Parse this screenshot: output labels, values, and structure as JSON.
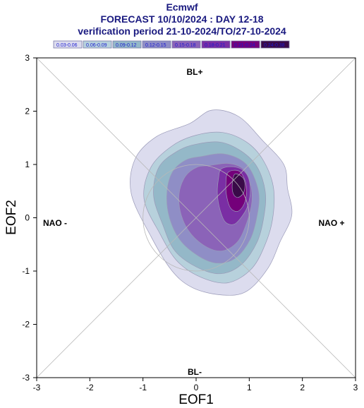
{
  "chart_data": {
    "type": "contour",
    "title_lines": [
      "Ecmwf",
      "FORECAST 10/10/2024 : DAY 12-18",
      "verification period 21-10-2024/TO/27-10-2024"
    ],
    "xlabel": "EOF1",
    "ylabel": "EOF2",
    "xlim": [
      -3,
      3
    ],
    "ylim": [
      -3,
      3
    ],
    "xticks": [
      "-3",
      "-2",
      "-1",
      "0",
      "1",
      "2",
      "3"
    ],
    "yticks": [
      "-3",
      "-2",
      "-1",
      "0",
      "1",
      "2",
      "3"
    ],
    "grid": false,
    "legend_position": "top",
    "regime_labels": {
      "top": "BL+",
      "bottom": "BL-",
      "left": "NAO -",
      "right": "NAO +"
    },
    "legend": [
      {
        "label": "0.03-0.06",
        "color": "#dcdcee"
      },
      {
        "label": "0.06-0.09",
        "color": "#b7d1dc"
      },
      {
        "label": "0.09-0.12",
        "color": "#94b8c8"
      },
      {
        "label": "0.12-0.15",
        "color": "#8f8ec6"
      },
      {
        "label": "0.15-0.18",
        "color": "#8b63b8"
      },
      {
        "label": "0.18-0.21",
        "color": "#7a2ea4"
      },
      {
        "label": "0.21-0.24",
        "color": "#74007a"
      },
      {
        "label": "0.24-0.38",
        "color": "#3a0a48"
      }
    ],
    "contours": [
      {
        "level": "0.03-0.06",
        "points": [
          [
            -0.12,
            1.77
          ],
          [
            0.3,
            2.02
          ],
          [
            0.8,
            1.9
          ],
          [
            1.25,
            1.45
          ],
          [
            1.65,
            1.0
          ],
          [
            1.72,
            0.55
          ],
          [
            1.8,
            0.05
          ],
          [
            1.58,
            -0.45
          ],
          [
            1.35,
            -0.95
          ],
          [
            0.95,
            -1.38
          ],
          [
            0.5,
            -1.45
          ],
          [
            -0.05,
            -1.32
          ],
          [
            -0.45,
            -1.0
          ],
          [
            -0.85,
            -0.35
          ],
          [
            -1.22,
            0.45
          ],
          [
            -1.15,
            1.1
          ],
          [
            -0.75,
            1.52
          ]
        ]
      },
      {
        "level": "0.06-0.09",
        "points": [
          [
            0.0,
            1.55
          ],
          [
            0.5,
            1.6
          ],
          [
            0.95,
            1.42
          ],
          [
            1.25,
            1.1
          ],
          [
            1.45,
            0.6
          ],
          [
            1.45,
            0.05
          ],
          [
            1.32,
            -0.45
          ],
          [
            1.05,
            -0.95
          ],
          [
            0.6,
            -1.22
          ],
          [
            0.1,
            -1.12
          ],
          [
            -0.35,
            -0.82
          ],
          [
            -0.68,
            -0.3
          ],
          [
            -0.98,
            0.35
          ],
          [
            -0.85,
            0.95
          ],
          [
            -0.45,
            1.35
          ]
        ]
      },
      {
        "level": "0.09-0.12",
        "points": [
          [
            0.0,
            1.38
          ],
          [
            0.45,
            1.42
          ],
          [
            0.85,
            1.25
          ],
          [
            1.15,
            0.95
          ],
          [
            1.3,
            0.5
          ],
          [
            1.28,
            0.05
          ],
          [
            1.15,
            -0.45
          ],
          [
            0.85,
            -0.88
          ],
          [
            0.45,
            -1.05
          ],
          [
            0.0,
            -0.92
          ],
          [
            -0.4,
            -0.62
          ],
          [
            -0.62,
            -0.15
          ],
          [
            -0.8,
            0.42
          ],
          [
            -0.7,
            0.95
          ],
          [
            -0.35,
            1.25
          ]
        ]
      },
      {
        "level": "0.12-0.15",
        "points": [
          [
            0.1,
            1.15
          ],
          [
            0.5,
            1.2
          ],
          [
            0.85,
            1.08
          ],
          [
            1.05,
            0.85
          ],
          [
            1.18,
            0.45
          ],
          [
            1.15,
            0.05
          ],
          [
            1.02,
            -0.4
          ],
          [
            0.75,
            -0.75
          ],
          [
            0.4,
            -0.85
          ],
          [
            0.05,
            -0.72
          ],
          [
            -0.3,
            -0.42
          ],
          [
            -0.5,
            0.0
          ],
          [
            -0.55,
            0.45
          ],
          [
            -0.45,
            0.85
          ],
          [
            -0.2,
            1.08
          ]
        ]
      },
      {
        "level": "0.15-0.18",
        "points": [
          [
            0.25,
            0.98
          ],
          [
            0.6,
            1.02
          ],
          [
            0.88,
            0.92
          ],
          [
            1.02,
            0.65
          ],
          [
            1.05,
            0.3
          ],
          [
            0.95,
            -0.1
          ],
          [
            0.78,
            -0.45
          ],
          [
            0.5,
            -0.62
          ],
          [
            0.2,
            -0.55
          ],
          [
            -0.1,
            -0.3
          ],
          [
            -0.28,
            0.05
          ],
          [
            -0.32,
            0.45
          ],
          [
            -0.2,
            0.78
          ],
          [
            0.02,
            0.95
          ]
        ]
      },
      {
        "level": "0.18-0.21",
        "points": [
          [
            0.48,
            0.92
          ],
          [
            0.75,
            0.95
          ],
          [
            0.95,
            0.82
          ],
          [
            1.02,
            0.55
          ],
          [
            0.98,
            0.25
          ],
          [
            0.88,
            0.05
          ],
          [
            0.72,
            -0.12
          ],
          [
            0.55,
            -0.08
          ],
          [
            0.45,
            0.15
          ],
          [
            0.4,
            0.45
          ],
          [
            0.42,
            0.72
          ]
        ]
      },
      {
        "level": "0.21-0.24",
        "points": [
          [
            0.6,
            0.85
          ],
          [
            0.8,
            0.88
          ],
          [
            0.92,
            0.7
          ],
          [
            0.95,
            0.48
          ],
          [
            0.9,
            0.25
          ],
          [
            0.78,
            0.12
          ],
          [
            0.65,
            0.18
          ],
          [
            0.58,
            0.38
          ],
          [
            0.56,
            0.62
          ]
        ]
      },
      {
        "level": "0.24-0.38",
        "points": [
          [
            0.73,
            0.82
          ],
          [
            0.88,
            0.75
          ],
          [
            0.92,
            0.6
          ],
          [
            0.88,
            0.45
          ],
          [
            0.78,
            0.38
          ],
          [
            0.7,
            0.45
          ],
          [
            0.68,
            0.62
          ]
        ]
      }
    ]
  }
}
